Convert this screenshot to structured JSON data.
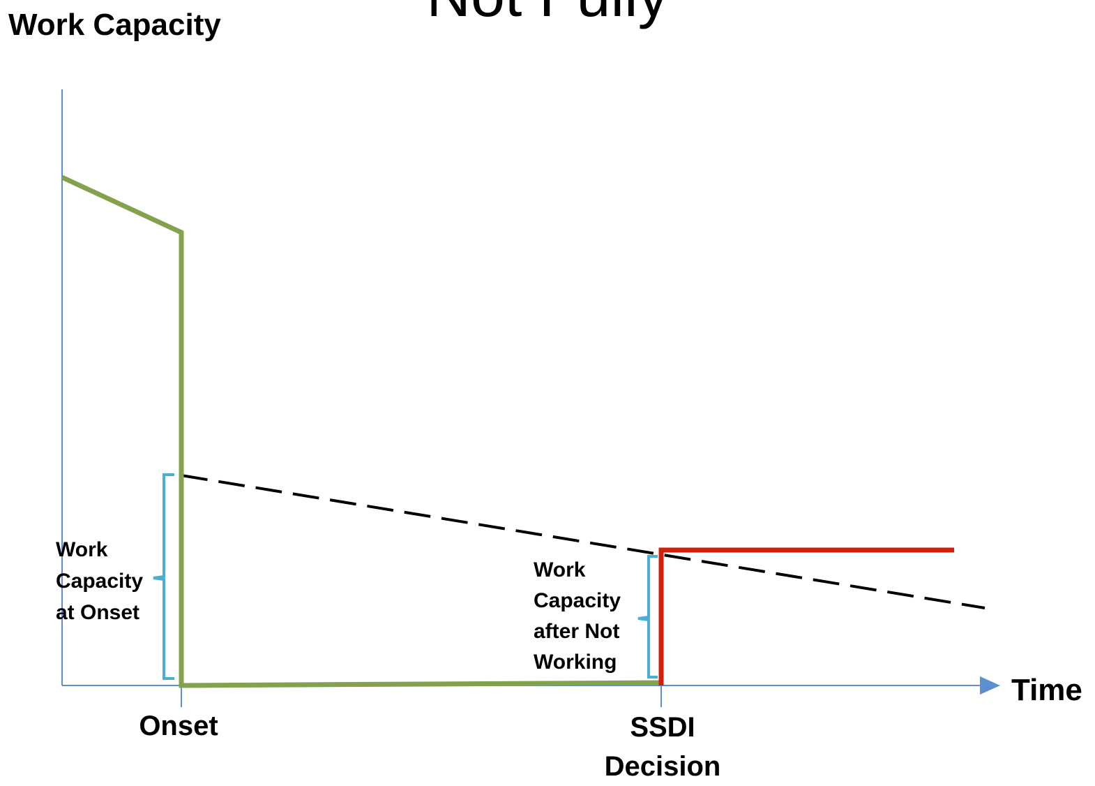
{
  "title": "Not Fully",
  "axes": {
    "y_title": "Work Capacity",
    "x_title": "Time"
  },
  "markers": {
    "onset": "Onset",
    "ssdi_decision": "SSDI Decision"
  },
  "annotations": {
    "capacity_at_onset": "Work Capacity at Onset",
    "capacity_after_not_working": "Work Capacity after Not Working"
  },
  "colors": {
    "axis": "#5b8fd0",
    "green_line": "#84a14e",
    "red_line": "#d21e0a",
    "dashed_line": "#000000",
    "brace": "#4bafd3"
  }
}
